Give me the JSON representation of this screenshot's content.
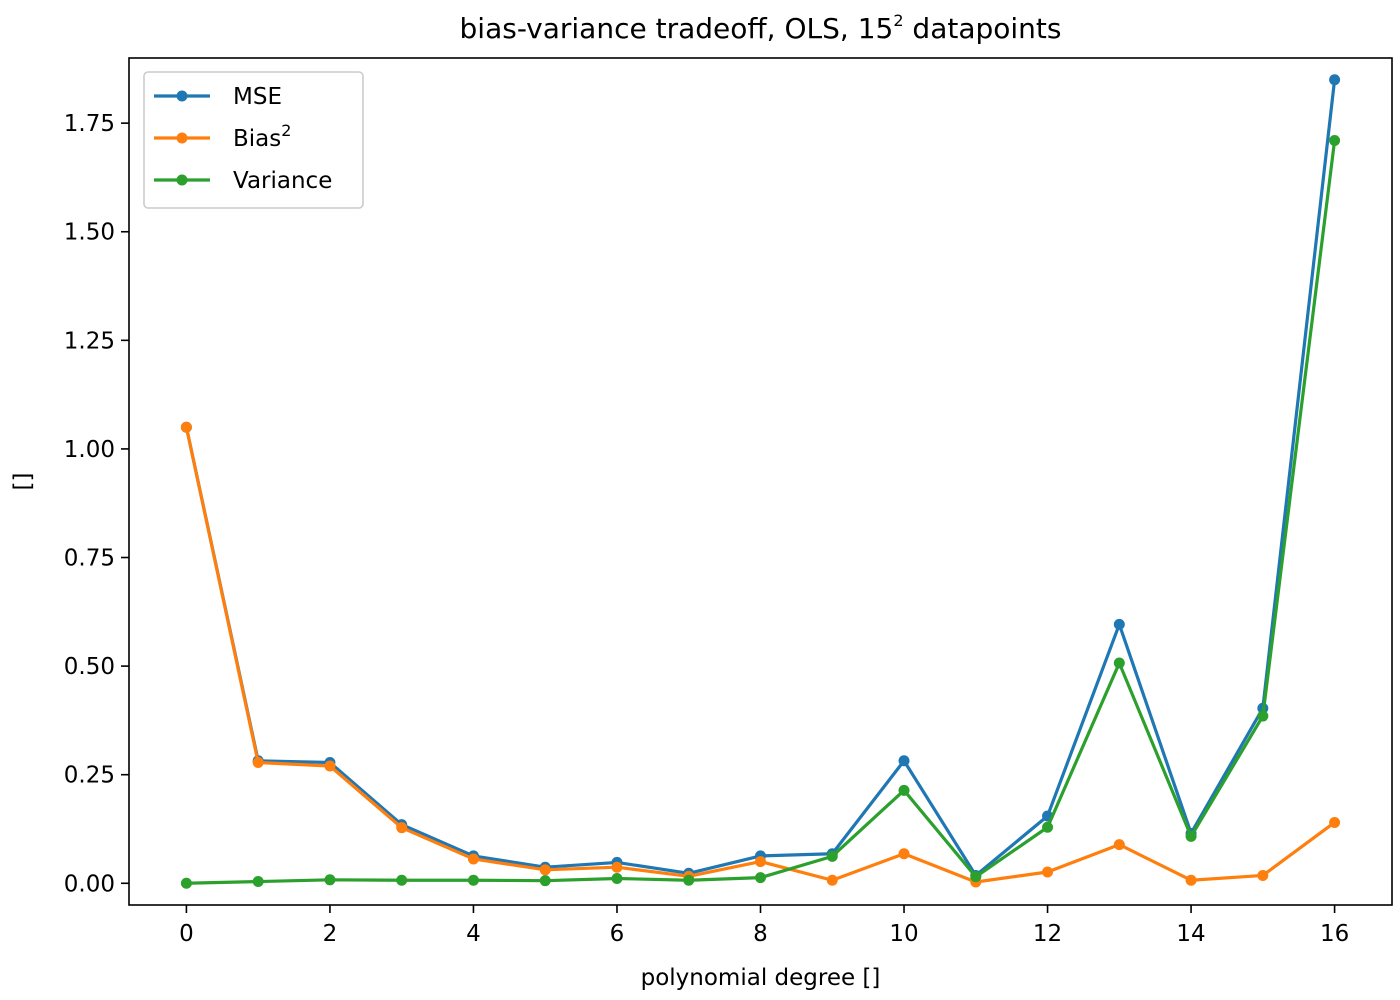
{
  "chart_data": {
    "type": "line",
    "title": "bias-variance tradeoff, OLS, 15",
    "title_sup": "2",
    "title_suffix": " datapoints",
    "xlabel": "polynomial degree []",
    "ylabel": "[]",
    "xlim": [
      -0.8,
      16.8
    ],
    "ylim": [
      -0.05,
      1.9
    ],
    "xticks": [
      0,
      2,
      4,
      6,
      8,
      10,
      12,
      14,
      16
    ],
    "yticks": [
      0.0,
      0.25,
      0.5,
      0.75,
      1.0,
      1.25,
      1.5,
      1.75
    ],
    "xtick_labels": [
      "0",
      "2",
      "4",
      "6",
      "8",
      "10",
      "12",
      "14",
      "16"
    ],
    "ytick_labels": [
      "0.00",
      "0.25",
      "0.50",
      "0.75",
      "1.00",
      "1.25",
      "1.50",
      "1.75"
    ],
    "grid": false,
    "legend_position": "top-left",
    "x": [
      0,
      1,
      2,
      3,
      4,
      5,
      6,
      7,
      8,
      9,
      10,
      11,
      12,
      13,
      14,
      15,
      16
    ],
    "series": [
      {
        "name": "MSE",
        "name_sup": "",
        "color": "#1f77b4",
        "values": [
          1.05,
          0.282,
          0.278,
          0.135,
          0.063,
          0.037,
          0.048,
          0.023,
          0.063,
          0.068,
          0.282,
          0.018,
          0.155,
          0.596,
          0.115,
          0.403,
          1.85
        ]
      },
      {
        "name": "Bias",
        "name_sup": "2",
        "color": "#ff7f0e",
        "values": [
          1.05,
          0.278,
          0.27,
          0.128,
          0.056,
          0.031,
          0.037,
          0.016,
          0.05,
          0.007,
          0.068,
          0.003,
          0.026,
          0.089,
          0.007,
          0.018,
          0.14
        ]
      },
      {
        "name": "Variance",
        "name_sup": "",
        "color": "#2ca02c",
        "values": [
          0.0,
          0.004,
          0.008,
          0.007,
          0.007,
          0.006,
          0.011,
          0.007,
          0.013,
          0.062,
          0.214,
          0.015,
          0.129,
          0.507,
          0.108,
          0.385,
          1.71
        ]
      }
    ]
  }
}
